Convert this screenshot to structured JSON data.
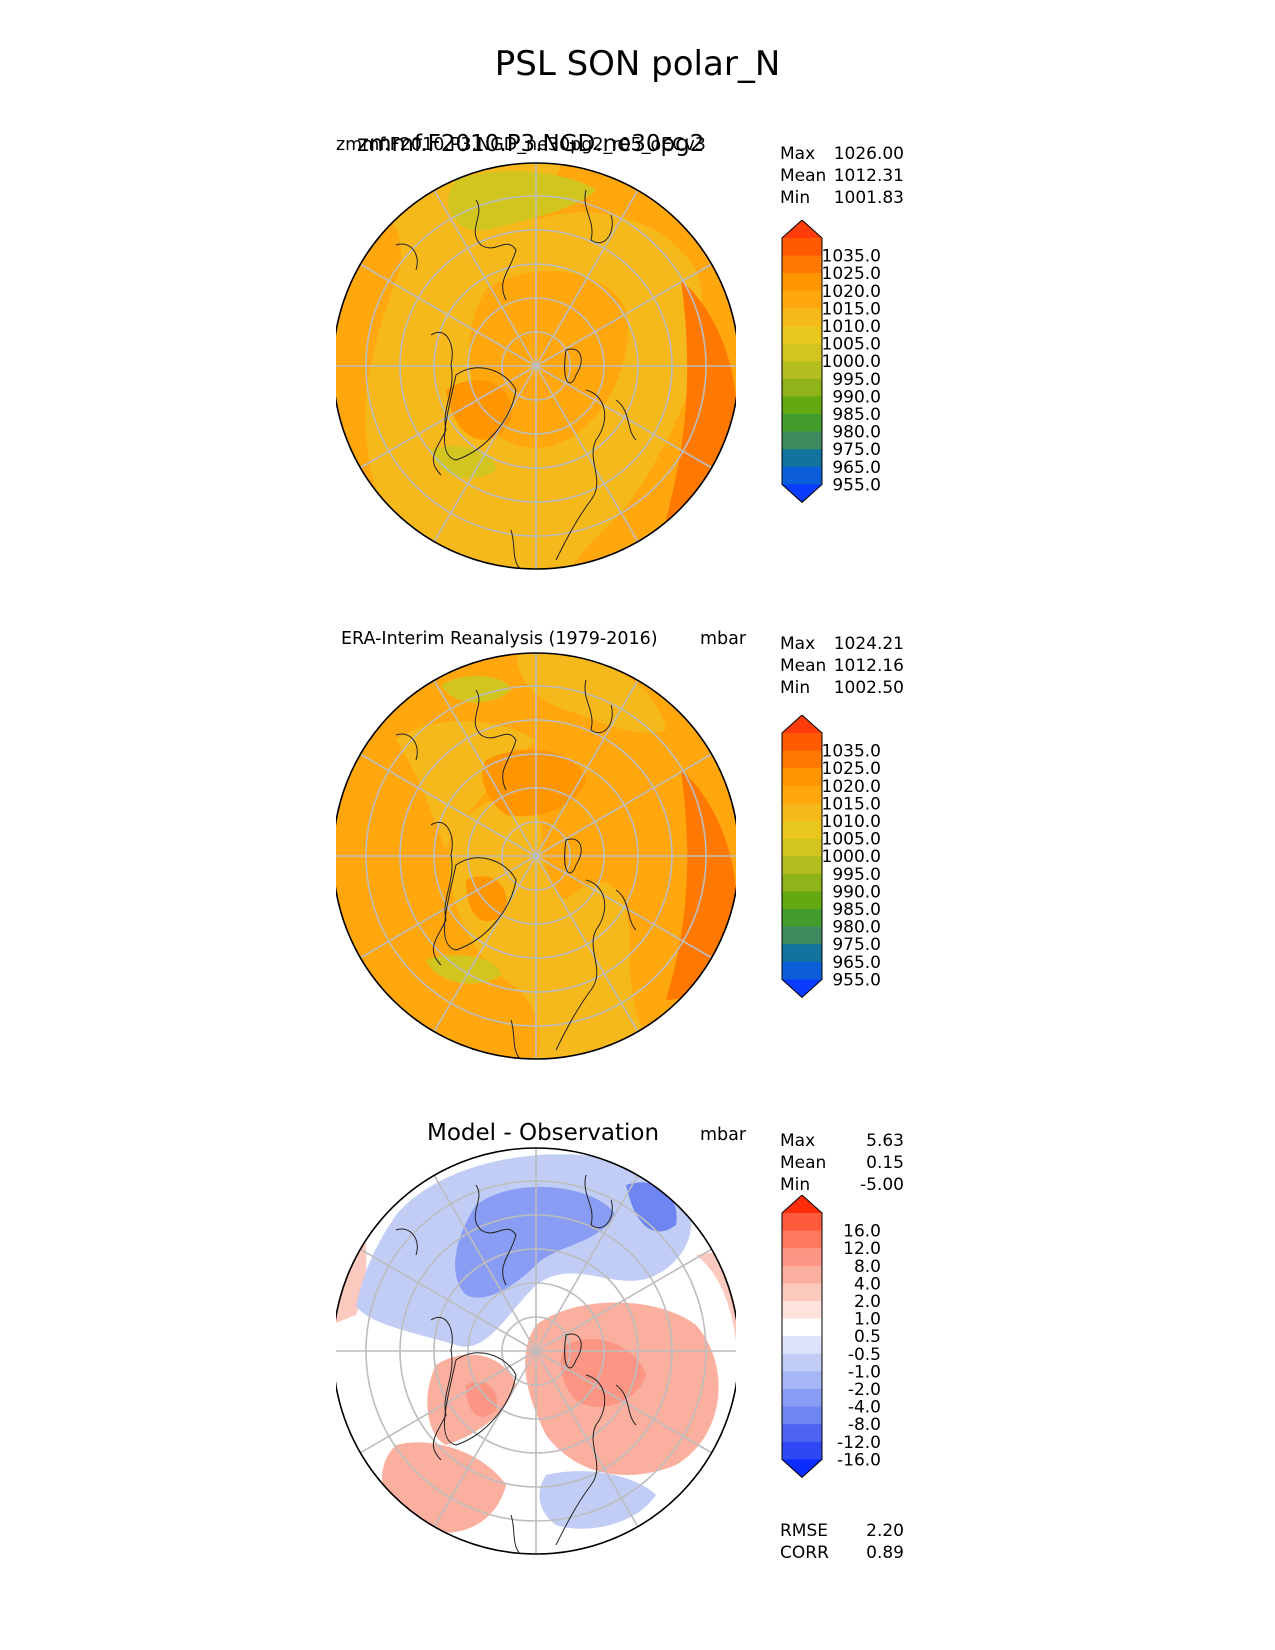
{
  "title": "PSL SON polar_N",
  "panels": [
    {
      "id": "model",
      "name_main": "zmmf.F2010.P3.NGD.ne30pg2",
      "name_overlap": "zmmf.F2010.P3.NGD_ne30pg2_r05_oECv3",
      "units": "",
      "stats": [
        {
          "key": "Max",
          "value": "1026.00"
        },
        {
          "key": "Mean",
          "value": "1012.31"
        },
        {
          "key": "Min",
          "value": "1001.83"
        }
      ]
    },
    {
      "id": "obs",
      "name": "ERA-Interim Reanalysis (1979-2016)",
      "units": "mbar",
      "stats": [
        {
          "key": "Max",
          "value": "1024.21"
        },
        {
          "key": "Mean",
          "value": "1012.16"
        },
        {
          "key": "Min",
          "value": "1002.50"
        }
      ]
    },
    {
      "id": "diff",
      "name": "Model - Observation",
      "units": "mbar",
      "stats": [
        {
          "key": "Max",
          "value": "5.63"
        },
        {
          "key": "Mean",
          "value": "0.15"
        },
        {
          "key": "Min",
          "value": "-5.00"
        }
      ],
      "metrics": [
        {
          "key": "RMSE",
          "value": "2.20"
        },
        {
          "key": "CORR",
          "value": "0.89"
        }
      ]
    }
  ],
  "colorbar_main": {
    "labels": [
      "1035.0",
      "1025.0",
      "1020.0",
      "1015.0",
      "1010.0",
      "1005.0",
      "1000.0",
      "995.0",
      "990.0",
      "985.0",
      "980.0",
      "975.0",
      "965.0",
      "955.0"
    ],
    "colors": [
      "#ff3c0a",
      "#ff5a00",
      "#ff7800",
      "#ff9600",
      "#ffa70c",
      "#f6b91b",
      "#eac71e",
      "#d2c51f",
      "#b4be1e",
      "#8eb41a",
      "#63aa12",
      "#419c2c",
      "#3f8a5f",
      "#12749e",
      "#0c5ed8",
      "#0a3cff"
    ]
  },
  "colorbar_diff": {
    "labels": [
      "16.0",
      "12.0",
      "8.0",
      "4.0",
      "2.0",
      "1.0",
      "0.5",
      "-0.5",
      "-1.0",
      "-2.0",
      "-4.0",
      "-8.0",
      "-12.0",
      "-16.0"
    ],
    "colors": [
      "#ff2d0a",
      "#ff5a3c",
      "#ff7a5e",
      "#fc9583",
      "#fbaf9f",
      "#fcc9bf",
      "#fde3dc",
      "#ffffff",
      "#dde3fa",
      "#c2cdf6",
      "#a7b6f5",
      "#8a9df4",
      "#6e85f2",
      "#4d64f2",
      "#2e48f4",
      "#0a2cff"
    ]
  },
  "chart_data": [
    {
      "type": "heatmap",
      "title": "zmmf.F2010.P3.NGD.ne30pg2",
      "projection": "north polar stereographic",
      "variable": "PSL",
      "season": "SON",
      "units": "mbar",
      "max": 1026.0,
      "mean": 1012.31,
      "min": 1001.83,
      "levels": [
        955,
        965,
        975,
        980,
        985,
        990,
        995,
        1000,
        1005,
        1010,
        1015,
        1020,
        1025,
        1035
      ]
    },
    {
      "type": "heatmap",
      "title": "ERA-Interim Reanalysis (1979-2016)",
      "projection": "north polar stereographic",
      "units": "mbar",
      "max": 1024.21,
      "mean": 1012.16,
      "min": 1002.5,
      "levels": [
        955,
        965,
        975,
        980,
        985,
        990,
        995,
        1000,
        1005,
        1010,
        1015,
        1020,
        1025,
        1035
      ]
    },
    {
      "type": "heatmap",
      "title": "Model - Observation",
      "projection": "north polar stereographic",
      "units": "mbar",
      "max": 5.63,
      "mean": 0.15,
      "min": -5.0,
      "rmse": 2.2,
      "corr": 0.89,
      "levels": [
        -16,
        -12,
        -8,
        -4,
        -2,
        -1,
        -0.5,
        0.5,
        1,
        2,
        4,
        8,
        12,
        16
      ]
    }
  ]
}
